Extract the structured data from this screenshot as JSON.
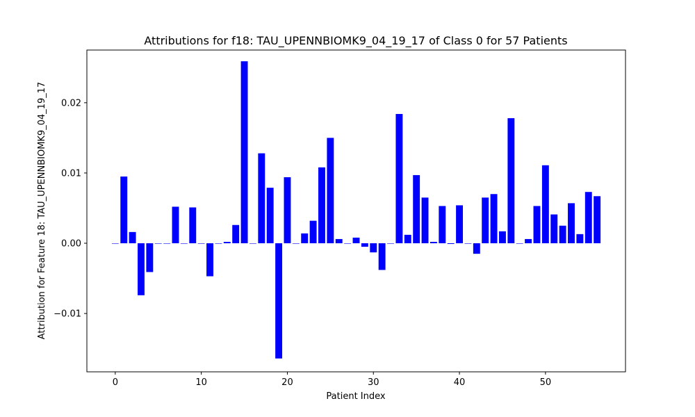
{
  "chart_data": {
    "type": "bar",
    "title": "Attributions for f18: TAU_UPENNBIOMK9_04_19_17 of Class 0 for 57 Patients",
    "xlabel": "Patient Index",
    "ylabel": "Attribution for Feature 18: TAU_UPENNBIOMK9_04_19_17",
    "xlim": [
      -3.3,
      59.3
    ],
    "ylim": [
      -0.0183,
      0.0275
    ],
    "xticks": [
      0,
      10,
      20,
      30,
      40,
      50
    ],
    "yticks": [
      -0.01,
      0.0,
      0.01,
      0.02
    ],
    "ytick_labels": [
      "−0.01",
      "0.00",
      "0.01",
      "0.02"
    ],
    "bar_color": "#0000ff",
    "bar_width": 0.8,
    "grid": false,
    "x": [
      0,
      1,
      2,
      3,
      4,
      5,
      6,
      7,
      8,
      9,
      10,
      11,
      12,
      13,
      14,
      15,
      16,
      17,
      18,
      19,
      20,
      21,
      22,
      23,
      24,
      25,
      26,
      27,
      28,
      29,
      30,
      31,
      32,
      33,
      34,
      35,
      36,
      37,
      38,
      39,
      40,
      41,
      42,
      43,
      44,
      45,
      46,
      47,
      48,
      49,
      50,
      51,
      52,
      53,
      54,
      55,
      56
    ],
    "values": [
      0.0,
      0.0095,
      0.0016,
      -0.0074,
      -0.0041,
      0.0,
      0.0,
      0.0052,
      0.0,
      0.0051,
      0.0,
      -0.0047,
      0.0,
      0.0002,
      0.0026,
      0.0259,
      0.0,
      0.0128,
      0.0079,
      -0.0164,
      0.0094,
      0.0,
      0.0014,
      0.0032,
      0.0108,
      0.015,
      0.0006,
      0.0,
      0.0008,
      -0.0005,
      -0.0013,
      -0.0038,
      0.0,
      0.0184,
      0.0012,
      0.0097,
      0.0065,
      0.0002,
      0.0053,
      -0.0001,
      0.0054,
      0.0,
      -0.0015,
      0.0065,
      0.007,
      0.0017,
      0.0178,
      0.0,
      0.0006,
      0.0053,
      0.0111,
      0.0041,
      0.0025,
      0.0057,
      0.0013,
      0.0073,
      0.0067
    ]
  }
}
